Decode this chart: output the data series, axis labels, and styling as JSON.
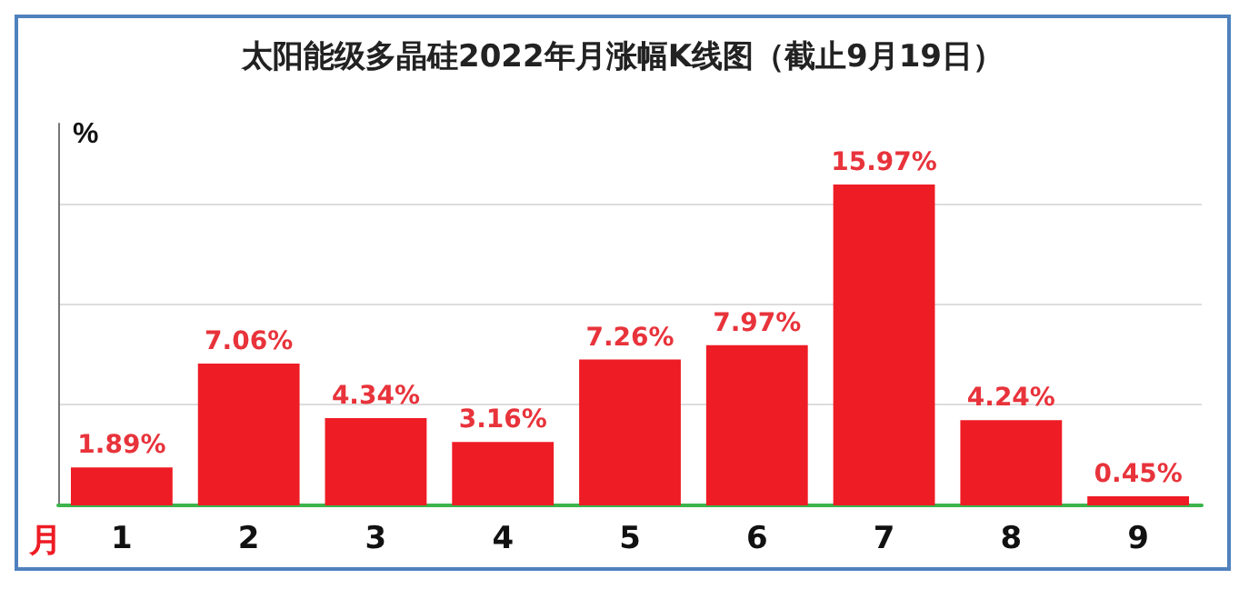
{
  "chart_data": {
    "type": "bar",
    "title": "太阳能级多晶硅2022年月涨幅K线图（截止9月19日）",
    "xlabel": "月",
    "ylabel": "%",
    "categories": [
      "1",
      "2",
      "3",
      "4",
      "5",
      "6",
      "7",
      "8",
      "9"
    ],
    "values": [
      1.89,
      7.06,
      4.34,
      3.16,
      7.26,
      7.97,
      15.97,
      4.24,
      0.45
    ],
    "value_labels": [
      "1.89%",
      "7.06%",
      "4.34%",
      "3.16%",
      "7.26%",
      "7.97%",
      "15.97%",
      "4.24%",
      "0.45%"
    ],
    "color": "#ee1c25",
    "ylim": [
      0,
      19
    ],
    "yticks": [
      {
        "value": 0,
        "label": null
      },
      {
        "value": 5,
        "label": null
      },
      {
        "value": 10,
        "label": null
      },
      {
        "value": 15,
        "label": null
      }
    ],
    "grid": "y"
  }
}
